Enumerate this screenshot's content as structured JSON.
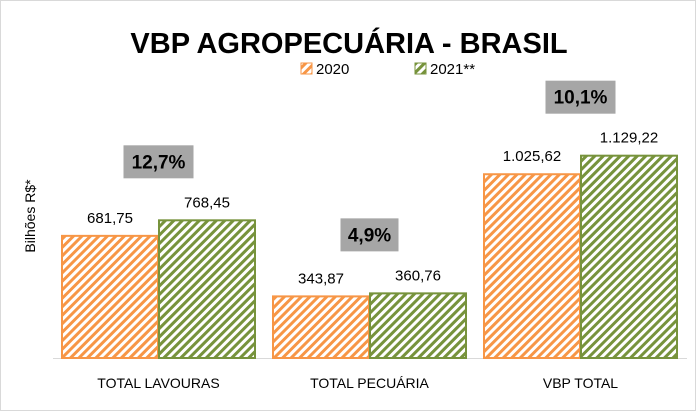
{
  "chart_data": {
    "type": "bar",
    "title": "VBP AGROPECUÁRIA - BRASIL",
    "ylabel": "Bilhões R$*",
    "xlabel": "",
    "ylim": [
      0,
      1200
    ],
    "grid": false,
    "legend_position": "top-center",
    "categories": [
      "TOTAL LAVOURAS",
      "TOTAL PECUÁRIA",
      "VBP TOTAL"
    ],
    "series": [
      {
        "name": "2020",
        "values": [
          681.75,
          343.87,
          1025.62
        ],
        "labels": [
          "681,75",
          "343,87",
          "1.025,62"
        ],
        "color": "#f79646"
      },
      {
        "name": "2021**",
        "values": [
          768.45,
          360.76,
          1129.22
        ],
        "labels": [
          "768,45",
          "360,76",
          "1.129,22"
        ],
        "color": "#77933c"
      }
    ],
    "annotations": [
      "12,7%",
      "4,9%",
      "10,1%"
    ],
    "annotation_color": "#a6a6a6"
  }
}
